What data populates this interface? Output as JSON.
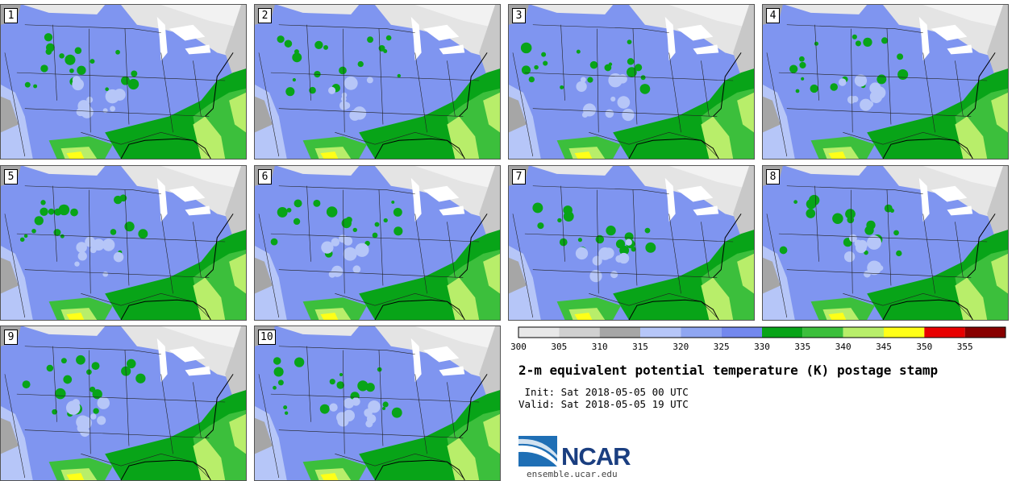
{
  "panels": [
    {
      "label": "1"
    },
    {
      "label": "2"
    },
    {
      "label": "3"
    },
    {
      "label": "4"
    },
    {
      "label": "5"
    },
    {
      "label": "6"
    },
    {
      "label": "7"
    },
    {
      "label": "8"
    },
    {
      "label": "9"
    },
    {
      "label": "10"
    }
  ],
  "colorbar": {
    "ticks": [
      "300",
      "305",
      "310",
      "315",
      "320",
      "325",
      "330",
      "335",
      "340",
      "345",
      "350",
      "355"
    ],
    "colors": [
      "#e8e8e8",
      "#d0d0d0",
      "#a6a6a6",
      "#b6c6f8",
      "#8fa6f2",
      "#7388ee",
      "#08a418",
      "#3cbf3c",
      "#b8ee6a",
      "#ffff18",
      "#e80000",
      "#880000"
    ]
  },
  "title": "2-m equivalent potential temperature (K) postage stamp",
  "init": " Init: Sat 2018-05-05 00 UTC",
  "valid": "Valid: Sat 2018-05-05 19 UTC",
  "logo": {
    "text": "NCAR",
    "url": "ensemble.ucar.edu"
  }
}
